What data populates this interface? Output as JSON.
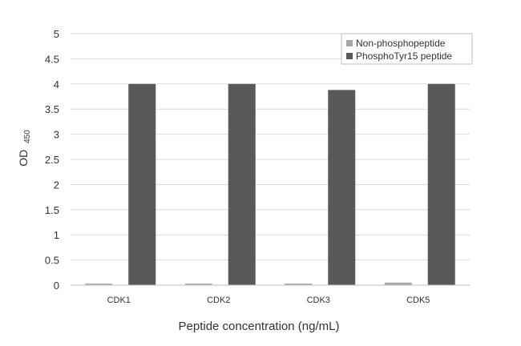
{
  "chart_data": {
    "type": "bar",
    "categories": [
      "CDK1",
      "CDK2",
      "CDK3",
      "CDK5"
    ],
    "series": [
      {
        "name": "Non-phosphopeptide",
        "values": [
          0.03,
          0.03,
          0.03,
          0.05
        ],
        "color": "#a6a6a6"
      },
      {
        "name": "PhosphoTyr15 peptide",
        "values": [
          4.0,
          4.0,
          3.88,
          4.0
        ],
        "color": "#595959"
      }
    ],
    "ylim": [
      0,
      5
    ],
    "yticks": [
      "0",
      "0.5",
      "1",
      "1.5",
      "2",
      "2.5",
      "3",
      "3.5",
      "4",
      "4.5",
      "5"
    ],
    "xlabel": "Peptide concentration (ng/mL)",
    "ylabel": "OD",
    "ylabel_sub": "450",
    "grid": true,
    "legend": "top-right"
  }
}
